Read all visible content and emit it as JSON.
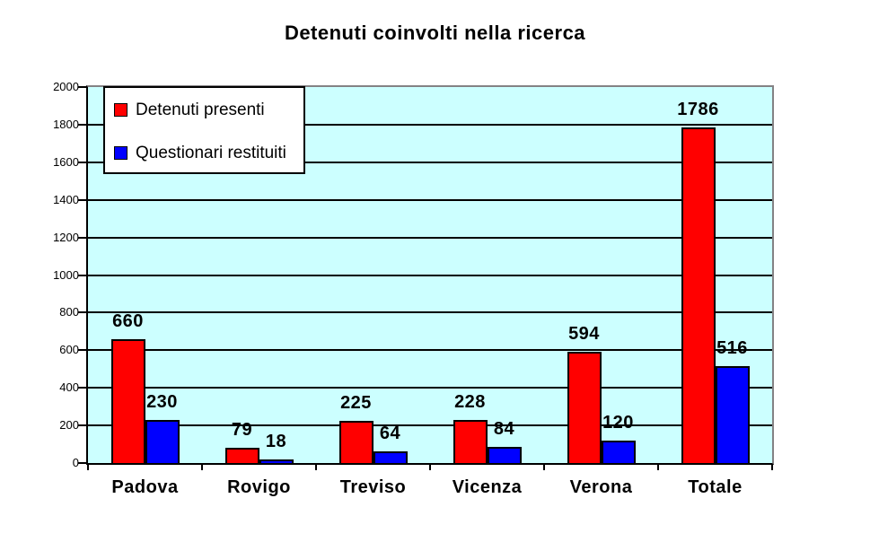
{
  "chart_data": {
    "type": "bar",
    "title": "Detenuti coinvolti nella ricerca",
    "categories": [
      "Padova",
      "Rovigo",
      "Treviso",
      "Vicenza",
      "Verona",
      "Totale"
    ],
    "series": [
      {
        "name": "Detenuti presenti",
        "color": "#ff0000",
        "values": [
          660,
          79,
          225,
          228,
          594,
          1786
        ]
      },
      {
        "name": "Questionari restituiti",
        "color": "#0000ff",
        "values": [
          230,
          18,
          64,
          84,
          120,
          516
        ]
      }
    ],
    "ylim": [
      0,
      2000
    ],
    "ytick_step": 200,
    "ytick_labels": [
      "0",
      "200",
      "400",
      "600",
      "800",
      "1000",
      "1200",
      "1400",
      "1600",
      "1800",
      "2000"
    ],
    "grid": true,
    "gridline_color": "#000000",
    "plot_bg": "#ccffff",
    "axis_color": "#000000",
    "frame_color": "#848284",
    "legend_position": "top-left",
    "data_labels": true
  }
}
